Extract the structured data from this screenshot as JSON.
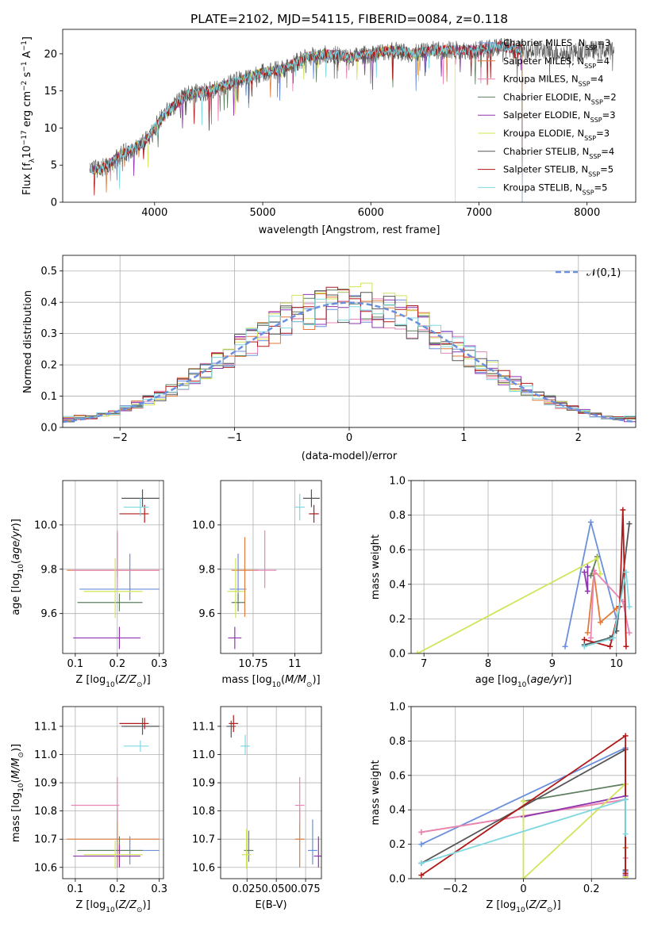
{
  "title": "PLATE=2102, MJD=54115, FIBERID=0084, z=0.118",
  "colors": [
    "#6a8fdc",
    "#e07b39",
    "#e985b6",
    "#5f7f5f",
    "#8e35b0",
    "#d2e45a",
    "#555555",
    "#b11a1a",
    "#7fd8e0"
  ],
  "legend_entries": [
    "Chabrier MILES, N_SSP=3",
    "Salpeter MILES, N_SSP=4",
    "Kroupa MILES, N_SSP=4",
    "Chabrier ELODIE, N_SSP=2",
    "Salpeter ELODIE, N_SSP=3",
    "Kroupa ELODIE, N_SSP=3",
    "Chabrier STELIB, N_SSP=4",
    "Salpeter STELIB, N_SSP=5",
    "Kroupa STELIB, N_SSP=5"
  ],
  "chart_data": [
    {
      "type": "line",
      "panel": "spectrum",
      "xlabel": "wavelength [Angstrom, rest frame]",
      "ylabel": "Flux [f_λ 10^-17 erg cm^-2 s^-1 A^-1]",
      "xlim": [
        3150,
        8450
      ],
      "ylim": [
        0,
        23.3
      ],
      "xticks": [
        4000,
        5000,
        6000,
        7000,
        8000
      ],
      "yticks": [
        0,
        5,
        10,
        15,
        20
      ],
      "envelope_x": [
        3400,
        3500,
        3700,
        3900,
        4000,
        4100,
        4300,
        4500,
        4700,
        4900,
        5000,
        5200,
        5400,
        5600,
        5800,
        6000,
        6200,
        6400,
        6600,
        6800,
        7000,
        7200,
        7400,
        7600,
        7800,
        8000,
        8200
      ],
      "envelope_y": [
        4.5,
        4.4,
        6.5,
        8.0,
        10.0,
        12.0,
        14.5,
        15.0,
        16.0,
        17.0,
        17.5,
        18.0,
        19.5,
        20.0,
        19.5,
        20.0,
        20.5,
        20.0,
        20.5,
        20.5,
        20.5,
        21.0,
        20.5,
        20.5,
        20.0,
        20.5,
        20.5
      ],
      "series_ranges": [
        [
          3400,
          7400
        ],
        [
          3500,
          7400
        ],
        [
          3400,
          7400
        ],
        [
          3900,
          7400
        ],
        [
          3400,
          7400
        ],
        [
          3400,
          6780
        ],
        [
          3400,
          8250
        ],
        [
          3400,
          7400
        ],
        [
          3400,
          7400
        ]
      ],
      "legend": "upper right"
    },
    {
      "type": "line",
      "panel": "residuals",
      "xlabel": "(data-model)/error",
      "ylabel": "Normed distribution",
      "xlim": [
        -2.5,
        2.5
      ],
      "ylim": [
        0,
        0.55
      ],
      "xticks": [
        -2,
        -1,
        0,
        1,
        2
      ],
      "yticks": [
        0.0,
        0.1,
        0.2,
        0.3,
        0.4,
        0.5
      ],
      "bin_width": 0.1,
      "reference": {
        "label": "𝒩(0,1)",
        "mean": 0,
        "sigma": 1
      },
      "legend": "upper right"
    },
    {
      "type": "scatter",
      "panel": "age-vs-Z",
      "xlabel": "Z [log10(Z/Z_sun)]",
      "ylabel": "age [log10(age/yr)]",
      "xlim": [
        0.07,
        0.31
      ],
      "ylim": [
        9.42,
        10.2
      ],
      "xticks": [
        0.1,
        0.2,
        0.3
      ],
      "yticks": [
        9.6,
        9.8,
        10.0
      ],
      "points": [
        {
          "x": 0.23,
          "y": 9.71,
          "xerr": [
            0.12,
            0.07
          ],
          "yerr": [
            0.05,
            0.16
          ]
        },
        {
          "x": 0.2,
          "y": 9.795,
          "xerr": [
            0.12,
            0.1
          ],
          "yerr": [
            0.03,
            0.17
          ]
        },
        {
          "x": 0.2,
          "y": 9.795,
          "xerr": [
            0.11,
            0.1
          ],
          "yerr": [
            0.08,
            0.18
          ]
        },
        {
          "x": 0.205,
          "y": 9.65,
          "xerr": [
            0.1,
            0.055
          ],
          "yerr": [
            0.04,
            0.04
          ]
        },
        {
          "x": 0.205,
          "y": 9.49,
          "xerr": [
            0.11,
            0.05
          ],
          "yerr": [
            0.05,
            0.05
          ]
        },
        {
          "x": 0.195,
          "y": 9.7,
          "xerr": [
            0.075,
            0.065
          ],
          "yerr": [
            0.12,
            0.15
          ]
        },
        {
          "x": 0.26,
          "y": 10.12,
          "xerr": [
            0.05,
            0.04
          ],
          "yerr": [
            0.04,
            0.04
          ]
        },
        {
          "x": 0.265,
          "y": 10.05,
          "xerr": [
            0.06,
            0.01
          ],
          "yerr": [
            0.04,
            0.04
          ]
        },
        {
          "x": 0.255,
          "y": 10.08,
          "xerr": [
            0.04,
            0.02
          ],
          "yerr": [
            0.04,
            0.04
          ]
        }
      ]
    },
    {
      "type": "scatter",
      "panel": "age-vs-mass",
      "xlabel": "mass [log10(M/M_sun)]",
      "ylabel": "",
      "xlim": [
        10.555,
        11.16
      ],
      "ylim": [
        9.42,
        10.2
      ],
      "xticks": [
        10.75,
        11.0
      ],
      "yticks": [
        9.6,
        9.8,
        10.0
      ],
      "points": [
        {
          "x": 10.66,
          "y": 9.71,
          "xerr": [
            0.05,
            0.05
          ],
          "yerr": [
            0.05,
            0.16
          ]
        },
        {
          "x": 10.7,
          "y": 9.795,
          "xerr": [
            0.08,
            0.08
          ],
          "yerr": [
            0.21,
            0.15
          ]
        },
        {
          "x": 10.82,
          "y": 9.795,
          "xerr": [
            0.07,
            0.07
          ],
          "yerr": [
            0.08,
            0.18
          ]
        },
        {
          "x": 10.66,
          "y": 9.65,
          "xerr": [
            0.04,
            0.04
          ],
          "yerr": [
            0.04,
            0.04
          ]
        },
        {
          "x": 10.64,
          "y": 9.49,
          "xerr": [
            0.04,
            0.04
          ],
          "yerr": [
            0.05,
            0.05
          ]
        },
        {
          "x": 10.645,
          "y": 9.7,
          "xerr": [
            0.05,
            0.05
          ],
          "yerr": [
            0.12,
            0.15
          ]
        },
        {
          "x": 11.1,
          "y": 10.12,
          "xerr": [
            0.05,
            0.05
          ],
          "yerr": [
            0.04,
            0.04
          ]
        },
        {
          "x": 11.115,
          "y": 10.05,
          "xerr": [
            0.03,
            0.03
          ],
          "yerr": [
            0.04,
            0.04
          ]
        },
        {
          "x": 11.03,
          "y": 10.08,
          "xerr": [
            0.03,
            0.03
          ],
          "yerr": [
            0.06,
            0.06
          ]
        }
      ]
    },
    {
      "type": "line",
      "panel": "mass-weight-vs-age",
      "xlabel": "age [log10(age/yr)]",
      "ylabel": "mass weight",
      "xlim": [
        6.8,
        10.3
      ],
      "ylim": [
        0,
        1
      ],
      "xticks": [
        7,
        8,
        9,
        10
      ],
      "yticks": [
        0.0,
        0.2,
        0.4,
        0.6,
        0.8,
        1.0
      ],
      "series": [
        {
          "x": [
            9.2,
            9.6,
            10.0
          ],
          "y": [
            0.04,
            0.76,
            0.2
          ]
        },
        {
          "x": [
            9.55,
            9.65,
            9.75,
            10.0
          ],
          "y": [
            0.12,
            0.46,
            0.18,
            0.26
          ]
        },
        {
          "x": [
            9.6,
            9.65,
            10.1,
            10.2
          ],
          "y": [
            0.09,
            0.48,
            0.3,
            0.12
          ]
        },
        {
          "x": [
            9.6,
            9.7
          ],
          "y": [
            0.45,
            0.56
          ]
        },
        {
          "x": [
            9.5,
            9.55,
            9.55
          ],
          "y": [
            0.47,
            0.36,
            0.5
          ]
        },
        {
          "x": [
            6.9,
            9.7,
            9.75
          ],
          "y": [
            0.0,
            0.55,
            0.46
          ]
        },
        {
          "x": [
            9.5,
            9.9,
            10.0,
            10.2
          ],
          "y": [
            0.05,
            0.09,
            0.13,
            0.75
          ]
        },
        {
          "x": [
            9.5,
            9.9,
            10.05,
            10.1,
            10.15
          ],
          "y": [
            0.08,
            0.04,
            0.27,
            0.83,
            0.04
          ]
        },
        {
          "x": [
            9.5,
            9.95,
            10.15,
            10.2
          ],
          "y": [
            0.04,
            0.09,
            0.47,
            0.27
          ]
        }
      ]
    },
    {
      "type": "scatter",
      "panel": "mass-vs-Z",
      "xlabel": "Z [log10(Z/Z_sun)]",
      "ylabel": "mass [log10(M/M_sun)]",
      "xlim": [
        0.07,
        0.31
      ],
      "ylim": [
        10.56,
        11.17
      ],
      "xticks": [
        0.1,
        0.2,
        0.3
      ],
      "yticks": [
        10.6,
        10.7,
        10.8,
        10.9,
        11.0,
        11.1
      ],
      "points": [
        {
          "x": 0.23,
          "y": 10.66,
          "xerr": [
            0.12,
            0.07
          ],
          "yerr": [
            0.05,
            0.05
          ]
        },
        {
          "x": 0.2,
          "y": 10.7,
          "xerr": [
            0.12,
            0.1
          ],
          "yerr": [
            0.1,
            0.11
          ]
        },
        {
          "x": 0.2,
          "y": 10.82,
          "xerr": [
            0.11,
            0.005
          ],
          "yerr": [
            0.06,
            0.1
          ]
        },
        {
          "x": 0.205,
          "y": 10.66,
          "xerr": [
            0.1,
            0.055
          ],
          "yerr": [
            0.04,
            0.05
          ]
        },
        {
          "x": 0.205,
          "y": 10.64,
          "xerr": [
            0.11,
            0.05
          ],
          "yerr": [
            0.04,
            0.04
          ]
        },
        {
          "x": 0.195,
          "y": 10.645,
          "xerr": [
            0.075,
            0.065
          ],
          "yerr": [
            0.05,
            0.05
          ]
        },
        {
          "x": 0.26,
          "y": 11.1,
          "xerr": [
            0.05,
            0.04
          ],
          "yerr": [
            0.03,
            0.03
          ]
        },
        {
          "x": 0.265,
          "y": 11.11,
          "xerr": [
            0.06,
            0.01
          ],
          "yerr": [
            0.02,
            0.02
          ]
        },
        {
          "x": 0.255,
          "y": 11.03,
          "xerr": [
            0.04,
            0.02
          ],
          "yerr": [
            0.02,
            0.02
          ]
        }
      ]
    },
    {
      "type": "scatter",
      "panel": "mass-vs-ebv",
      "xlabel": "E(B-V)",
      "ylabel": "",
      "xlim": [
        0.0025,
        0.0885
      ],
      "ylim": [
        10.56,
        11.17
      ],
      "xticks": [
        0.025,
        0.05,
        0.075
      ],
      "xticklabels": [
        "0.025",
        "0.050",
        "0.075"
      ],
      "yticks": [
        10.6,
        10.7,
        10.8,
        10.9,
        11.0,
        11.1
      ],
      "points": [
        {
          "x": 0.081,
          "y": 10.66,
          "yerr": [
            0.05,
            0.11
          ]
        },
        {
          "x": 0.07,
          "y": 10.7,
          "yerr": [
            0.1,
            0.11
          ]
        },
        {
          "x": 0.07,
          "y": 10.82,
          "yerr": [
            0.06,
            0.1
          ]
        },
        {
          "x": 0.0265,
          "y": 10.66,
          "yerr": [
            0.04,
            0.07
          ]
        },
        {
          "x": 0.086,
          "y": 10.64,
          "yerr": [
            0.04,
            0.07
          ]
        },
        {
          "x": 0.0245,
          "y": 10.645,
          "yerr": [
            0.05,
            0.09
          ]
        },
        {
          "x": 0.0115,
          "y": 11.1,
          "yerr": [
            0.04,
            0.02
          ]
        },
        {
          "x": 0.0135,
          "y": 11.11,
          "yerr": [
            0.03,
            0.03
          ]
        },
        {
          "x": 0.0235,
          "y": 11.03,
          "yerr": [
            0.03,
            0.04
          ]
        }
      ]
    },
    {
      "type": "line",
      "panel": "mass-weight-vs-Z",
      "xlabel": "Z [log10(Z/Z_sun)]",
      "ylabel": "mass weight",
      "xlim": [
        -0.33,
        0.33
      ],
      "ylim": [
        0,
        1
      ],
      "xticks": [
        -0.2,
        0.0,
        0.2
      ],
      "yticks": [
        0.0,
        0.2,
        0.4,
        0.6,
        0.8,
        1.0
      ],
      "series": [
        {
          "x": [
            -0.3,
            0.3,
            0.3
          ],
          "y": [
            0.2,
            0.76,
            0.04
          ]
        },
        {
          "x": [
            -0.3,
            0.3,
            0.3
          ],
          "y": [
            0.27,
            0.46,
            0.18
          ]
        },
        {
          "x": [
            -0.3,
            0.3,
            0.3
          ],
          "y": [
            0.27,
            0.46,
            0.12
          ]
        },
        {
          "x": [
            0.0,
            0.3,
            0.3
          ],
          "y": [
            0.45,
            0.55,
            0.01
          ]
        },
        {
          "x": [
            0.0,
            0.3,
            0.3
          ],
          "y": [
            0.36,
            0.48,
            0.02
          ]
        },
        {
          "x": [
            0.0,
            0.0,
            0.3,
            0.3
          ],
          "y": [
            0.45,
            0.0,
            0.55,
            0.01
          ]
        },
        {
          "x": [
            -0.3,
            0.3,
            0.3
          ],
          "y": [
            0.09,
            0.75,
            0.05
          ]
        },
        {
          "x": [
            -0.3,
            0.3,
            0.3
          ],
          "y": [
            0.02,
            0.83,
            0.03
          ]
        },
        {
          "x": [
            -0.3,
            0.3,
            0.3
          ],
          "y": [
            0.09,
            0.46,
            0.26
          ]
        }
      ]
    }
  ]
}
